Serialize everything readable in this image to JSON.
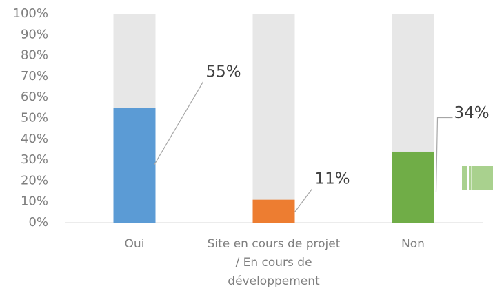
{
  "chart_data": {
    "type": "bar",
    "categories": [
      "Oui",
      "Site en cours de projet / En cours de développement",
      "Non"
    ],
    "values": [
      55,
      11,
      34
    ],
    "value_labels": [
      "55%",
      "11%",
      "34%"
    ],
    "colors": [
      "#5b9bd5",
      "#ed7d31",
      "#70ad47"
    ],
    "background_color": "#e7e7e7",
    "ylim": [
      0,
      100
    ],
    "yticks": [
      {
        "value": 0,
        "label": "0%"
      },
      {
        "value": 10,
        "label": "10%"
      },
      {
        "value": 20,
        "label": "20%"
      },
      {
        "value": 30,
        "label": "30%"
      },
      {
        "value": 40,
        "label": "40%"
      },
      {
        "value": 50,
        "label": "50%"
      },
      {
        "value": 60,
        "label": "60%"
      },
      {
        "value": 70,
        "label": "70%"
      },
      {
        "value": 80,
        "label": "80%"
      },
      {
        "value": 90,
        "label": "90%"
      },
      {
        "value": 100,
        "label": "100%"
      }
    ],
    "grid": false
  }
}
